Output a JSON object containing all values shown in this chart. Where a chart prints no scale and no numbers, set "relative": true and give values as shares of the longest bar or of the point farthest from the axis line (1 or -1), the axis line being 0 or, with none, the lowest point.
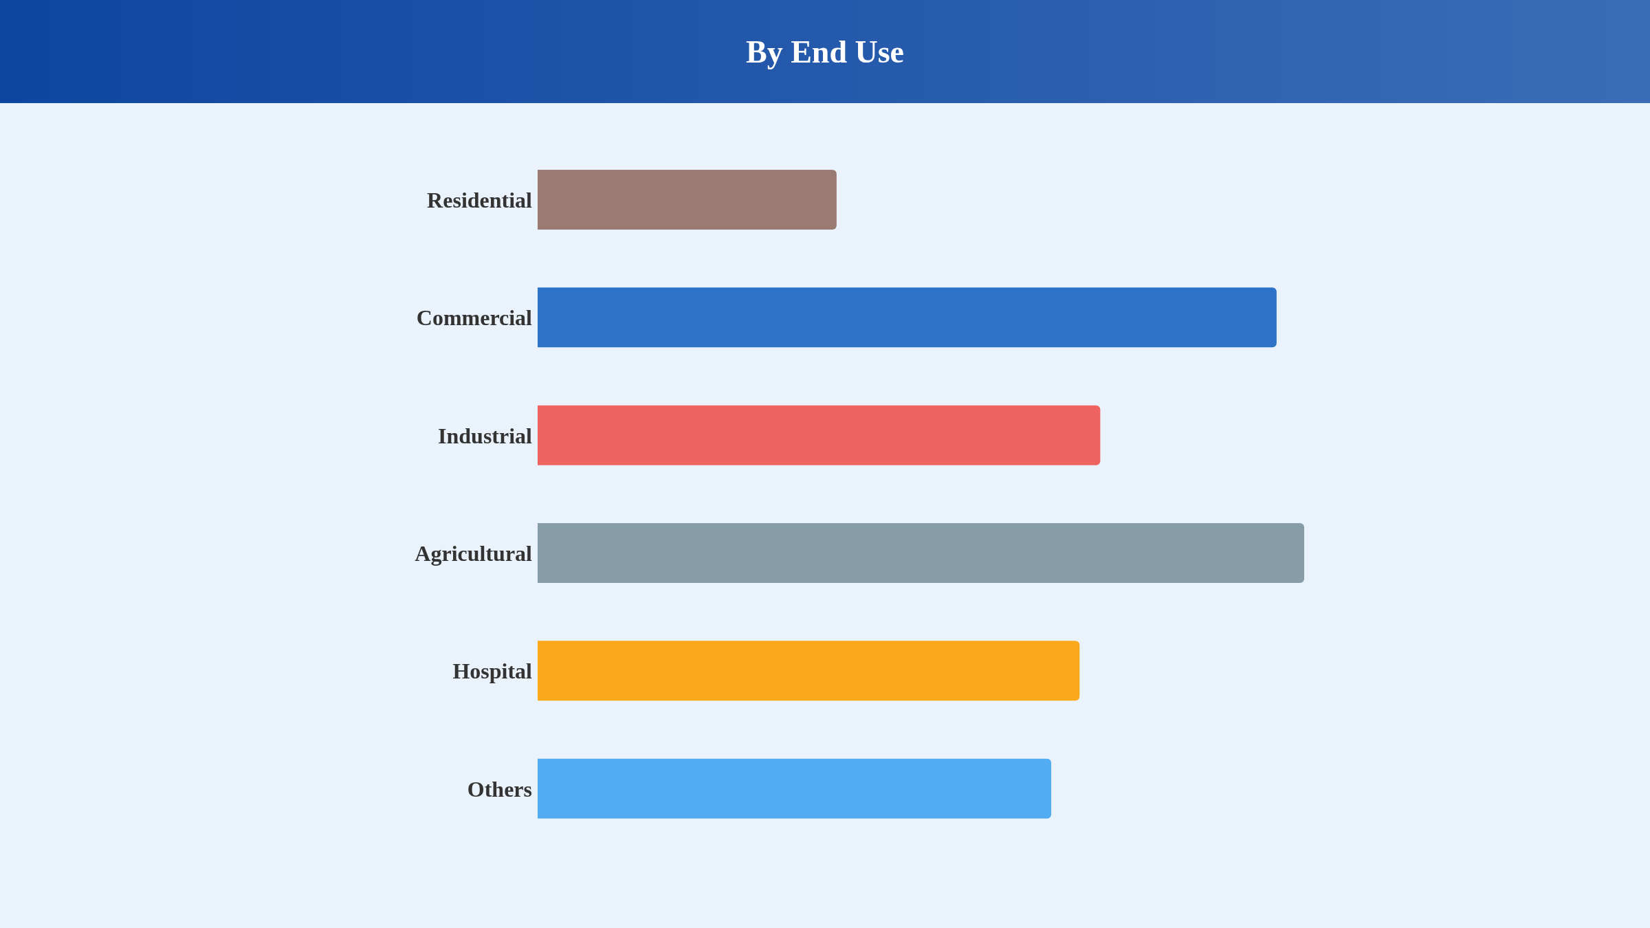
{
  "chart_data": {
    "type": "bar",
    "orientation": "horizontal",
    "relative": true,
    "title": "By End Use",
    "categories": [
      "Residential",
      "Commercial",
      "Industrial",
      "Agricultural",
      "Hospital",
      "Others"
    ],
    "values": [
      0.39,
      0.964,
      0.734,
      1,
      0.707,
      0.67
    ],
    "colors": [
      "#9a7b72",
      "#2d74c8",
      "#ef6461",
      "#869ca6",
      "#fba91a",
      "#52acf3"
    ],
    "grid": false,
    "legend": false
  }
}
